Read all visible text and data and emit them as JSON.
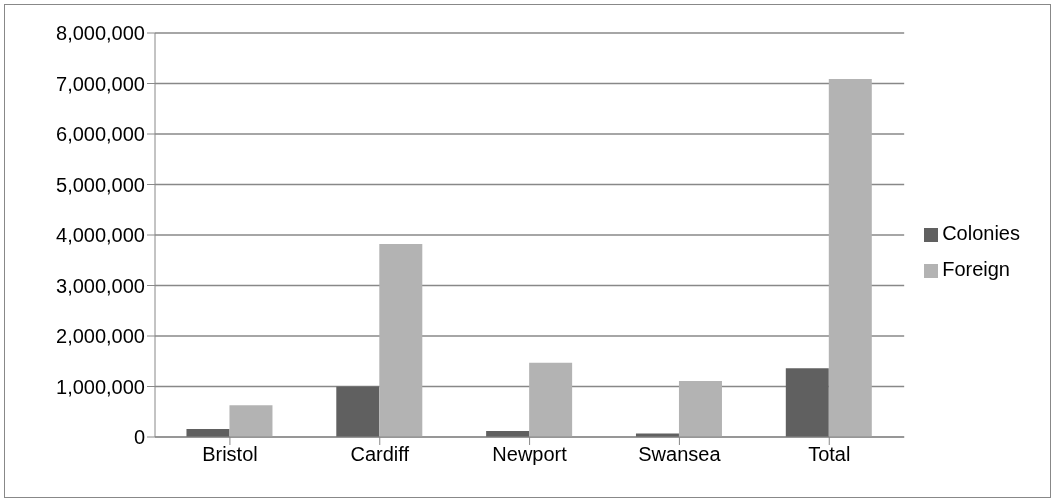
{
  "chart_data": {
    "type": "bar",
    "categories": [
      "Bristol",
      "Cardiff",
      "Newport",
      "Swansea",
      "Total"
    ],
    "series": [
      {
        "name": "Colonies",
        "color": "#606060",
        "values": [
          160000,
          1000000,
          120000,
          70000,
          1360000
        ]
      },
      {
        "name": "Foreign",
        "color": "#b3b3b3",
        "values": [
          630000,
          3820000,
          1470000,
          1110000,
          7090000
        ]
      }
    ],
    "ylim": [
      0,
      8000000
    ],
    "yticks": [
      {
        "value": 0,
        "label": "0"
      },
      {
        "value": 1000000,
        "label": "1,000,000"
      },
      {
        "value": 2000000,
        "label": "2,000,000"
      },
      {
        "value": 3000000,
        "label": "3,000,000"
      },
      {
        "value": 4000000,
        "label": "4,000,000"
      },
      {
        "value": 5000000,
        "label": "5,000,000"
      },
      {
        "value": 6000000,
        "label": "6,000,000"
      },
      {
        "value": 7000000,
        "label": "7,000,000"
      },
      {
        "value": 8000000,
        "label": "8,000,000"
      }
    ],
    "grid": "y",
    "legend": "right"
  }
}
